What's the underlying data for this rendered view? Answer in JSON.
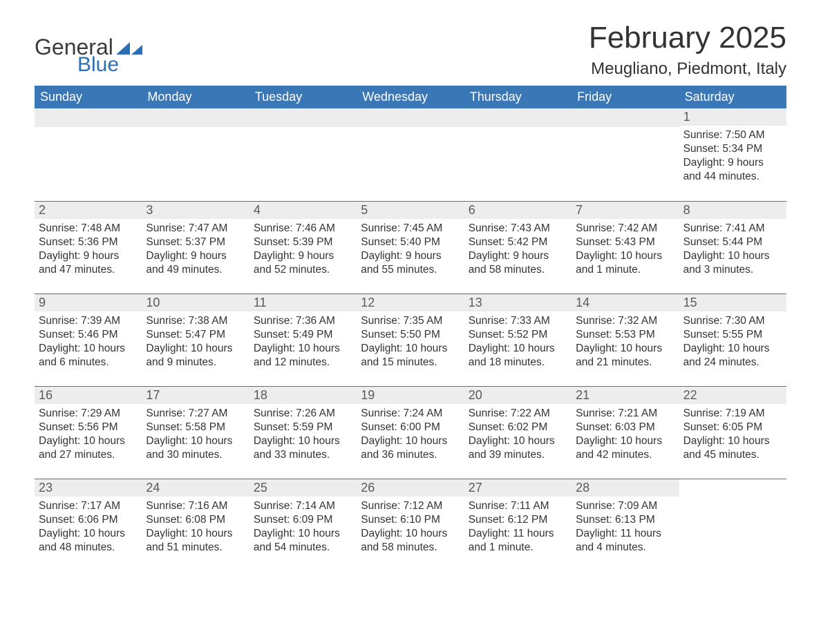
{
  "logo": {
    "text1": "General",
    "text2": "Blue",
    "tri_color": "#2d6fb6",
    "text1_color": "#3b3b3b"
  },
  "title": "February 2025",
  "location": "Meugliano, Piedmont, Italy",
  "header_bg": "#3a77b7",
  "header_fg": "#ffffff",
  "daynum_bg": "#ededed",
  "daynum_fg": "#5a5a5a",
  "week_border": "#3a77b7",
  "body_color": "#333333",
  "days_of_week": [
    "Sunday",
    "Monday",
    "Tuesday",
    "Wednesday",
    "Thursday",
    "Friday",
    "Saturday"
  ],
  "weeks": [
    [
      {
        "blank": true
      },
      {
        "blank": true
      },
      {
        "blank": true
      },
      {
        "blank": true
      },
      {
        "blank": true
      },
      {
        "blank": true
      },
      {
        "n": "1",
        "sr": "Sunrise: 7:50 AM",
        "ss": "Sunset: 5:34 PM",
        "dl": "Daylight: 9 hours and 44 minutes."
      }
    ],
    [
      {
        "n": "2",
        "sr": "Sunrise: 7:48 AM",
        "ss": "Sunset: 5:36 PM",
        "dl": "Daylight: 9 hours and 47 minutes."
      },
      {
        "n": "3",
        "sr": "Sunrise: 7:47 AM",
        "ss": "Sunset: 5:37 PM",
        "dl": "Daylight: 9 hours and 49 minutes."
      },
      {
        "n": "4",
        "sr": "Sunrise: 7:46 AM",
        "ss": "Sunset: 5:39 PM",
        "dl": "Daylight: 9 hours and 52 minutes."
      },
      {
        "n": "5",
        "sr": "Sunrise: 7:45 AM",
        "ss": "Sunset: 5:40 PM",
        "dl": "Daylight: 9 hours and 55 minutes."
      },
      {
        "n": "6",
        "sr": "Sunrise: 7:43 AM",
        "ss": "Sunset: 5:42 PM",
        "dl": "Daylight: 9 hours and 58 minutes."
      },
      {
        "n": "7",
        "sr": "Sunrise: 7:42 AM",
        "ss": "Sunset: 5:43 PM",
        "dl": "Daylight: 10 hours and 1 minute."
      },
      {
        "n": "8",
        "sr": "Sunrise: 7:41 AM",
        "ss": "Sunset: 5:44 PM",
        "dl": "Daylight: 10 hours and 3 minutes."
      }
    ],
    [
      {
        "n": "9",
        "sr": "Sunrise: 7:39 AM",
        "ss": "Sunset: 5:46 PM",
        "dl": "Daylight: 10 hours and 6 minutes."
      },
      {
        "n": "10",
        "sr": "Sunrise: 7:38 AM",
        "ss": "Sunset: 5:47 PM",
        "dl": "Daylight: 10 hours and 9 minutes."
      },
      {
        "n": "11",
        "sr": "Sunrise: 7:36 AM",
        "ss": "Sunset: 5:49 PM",
        "dl": "Daylight: 10 hours and 12 minutes."
      },
      {
        "n": "12",
        "sr": "Sunrise: 7:35 AM",
        "ss": "Sunset: 5:50 PM",
        "dl": "Daylight: 10 hours and 15 minutes."
      },
      {
        "n": "13",
        "sr": "Sunrise: 7:33 AM",
        "ss": "Sunset: 5:52 PM",
        "dl": "Daylight: 10 hours and 18 minutes."
      },
      {
        "n": "14",
        "sr": "Sunrise: 7:32 AM",
        "ss": "Sunset: 5:53 PM",
        "dl": "Daylight: 10 hours and 21 minutes."
      },
      {
        "n": "15",
        "sr": "Sunrise: 7:30 AM",
        "ss": "Sunset: 5:55 PM",
        "dl": "Daylight: 10 hours and 24 minutes."
      }
    ],
    [
      {
        "n": "16",
        "sr": "Sunrise: 7:29 AM",
        "ss": "Sunset: 5:56 PM",
        "dl": "Daylight: 10 hours and 27 minutes."
      },
      {
        "n": "17",
        "sr": "Sunrise: 7:27 AM",
        "ss": "Sunset: 5:58 PM",
        "dl": "Daylight: 10 hours and 30 minutes."
      },
      {
        "n": "18",
        "sr": "Sunrise: 7:26 AM",
        "ss": "Sunset: 5:59 PM",
        "dl": "Daylight: 10 hours and 33 minutes."
      },
      {
        "n": "19",
        "sr": "Sunrise: 7:24 AM",
        "ss": "Sunset: 6:00 PM",
        "dl": "Daylight: 10 hours and 36 minutes."
      },
      {
        "n": "20",
        "sr": "Sunrise: 7:22 AM",
        "ss": "Sunset: 6:02 PM",
        "dl": "Daylight: 10 hours and 39 minutes."
      },
      {
        "n": "21",
        "sr": "Sunrise: 7:21 AM",
        "ss": "Sunset: 6:03 PM",
        "dl": "Daylight: 10 hours and 42 minutes."
      },
      {
        "n": "22",
        "sr": "Sunrise: 7:19 AM",
        "ss": "Sunset: 6:05 PM",
        "dl": "Daylight: 10 hours and 45 minutes."
      }
    ],
    [
      {
        "n": "23",
        "sr": "Sunrise: 7:17 AM",
        "ss": "Sunset: 6:06 PM",
        "dl": "Daylight: 10 hours and 48 minutes."
      },
      {
        "n": "24",
        "sr": "Sunrise: 7:16 AM",
        "ss": "Sunset: 6:08 PM",
        "dl": "Daylight: 10 hours and 51 minutes."
      },
      {
        "n": "25",
        "sr": "Sunrise: 7:14 AM",
        "ss": "Sunset: 6:09 PM",
        "dl": "Daylight: 10 hours and 54 minutes."
      },
      {
        "n": "26",
        "sr": "Sunrise: 7:12 AM",
        "ss": "Sunset: 6:10 PM",
        "dl": "Daylight: 10 hours and 58 minutes."
      },
      {
        "n": "27",
        "sr": "Sunrise: 7:11 AM",
        "ss": "Sunset: 6:12 PM",
        "dl": "Daylight: 11 hours and 1 minute."
      },
      {
        "n": "28",
        "sr": "Sunrise: 7:09 AM",
        "ss": "Sunset: 6:13 PM",
        "dl": "Daylight: 11 hours and 4 minutes."
      },
      {
        "blank": true,
        "no_bar": true
      }
    ]
  ]
}
